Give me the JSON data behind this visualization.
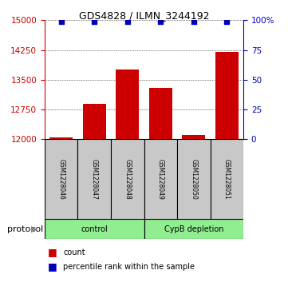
{
  "title": "GDS4828 / ILMN_3244192",
  "samples": [
    "GSM1228046",
    "GSM1228047",
    "GSM1228048",
    "GSM1228049",
    "GSM1228050",
    "GSM1228051"
  ],
  "counts": [
    12055,
    12900,
    13750,
    13300,
    12110,
    14200
  ],
  "percentiles": [
    99,
    99,
    99,
    99,
    99,
    99
  ],
  "ylim_left": [
    12000,
    15000
  ],
  "ylim_right": [
    0,
    100
  ],
  "yticks_left": [
    12000,
    12750,
    13500,
    14250,
    15000
  ],
  "yticks_right": [
    0,
    25,
    50,
    75,
    100
  ],
  "groups": [
    {
      "label": "control",
      "start": 0,
      "end": 3,
      "color": "#90EE90"
    },
    {
      "label": "CypB depletion",
      "start": 3,
      "end": 6,
      "color": "#90EE90"
    }
  ],
  "bar_color": "#CC0000",
  "dot_color": "#0000BB",
  "bar_width": 0.7,
  "sample_box_color": "#C8C8C8",
  "left_axis_color": "#CC0000",
  "right_axis_color": "#0000BB",
  "protocol_label": "protocol",
  "legend_count_label": "count",
  "legend_percentile_label": "percentile rank within the sample",
  "dot_size": 18,
  "title_fontsize": 9,
  "tick_fontsize": 7.5,
  "sample_fontsize": 5.5,
  "group_fontsize": 7,
  "legend_fontsize": 7,
  "protocol_fontsize": 8
}
